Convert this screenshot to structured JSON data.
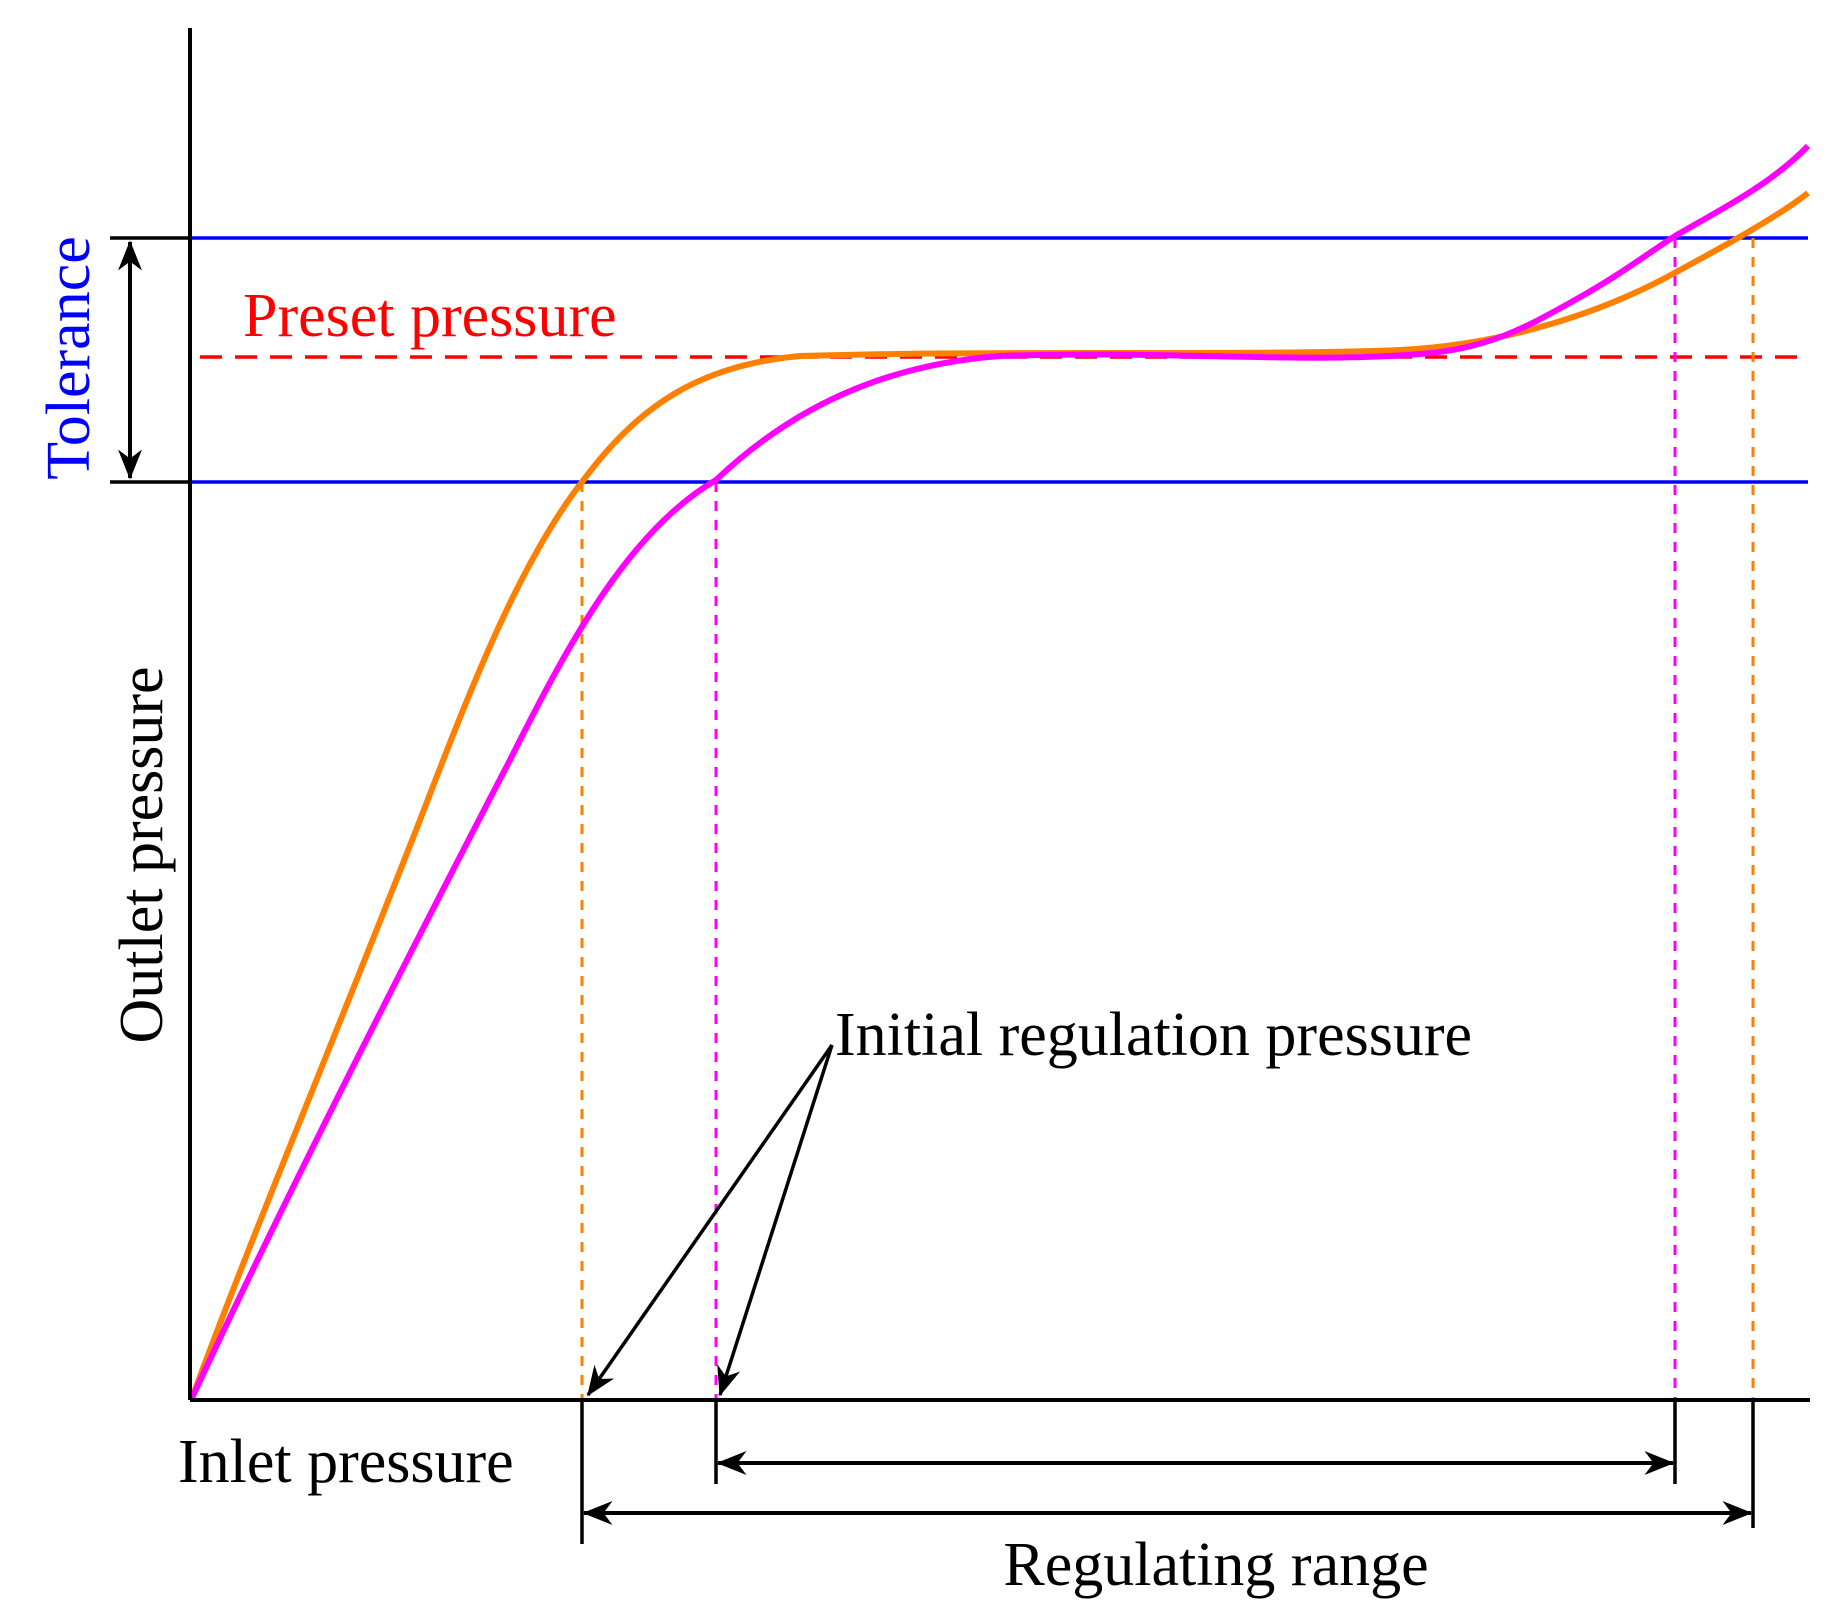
{
  "labels": {
    "tolerance": "Tolerance",
    "preset_pressure": "Preset pressure",
    "outlet_pressure": "Outlet pressure",
    "inlet_pressure": "Inlet pressure",
    "initial_regulation_pressure": "Initial regulation pressure",
    "regulating_range": "Regulating range"
  },
  "colors": {
    "axis": "#000000",
    "tolerance": "#0000ff",
    "preset": "#ff0000",
    "curve_orange": "#ff8000",
    "curve_magenta": "#ff00ff",
    "annotation": "#000000"
  }
}
